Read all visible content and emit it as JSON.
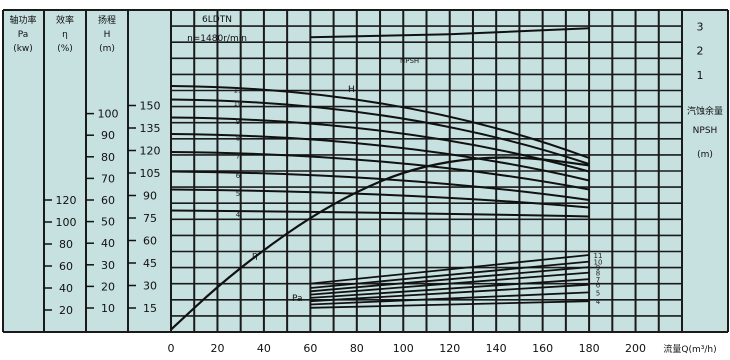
{
  "chart_data": {
    "type": "line",
    "title": "6LDTN",
    "subtitle": "n=1480r/min",
    "xlabel": "流量Q(m³/h)",
    "x_ticks": [
      "0",
      "20",
      "40",
      "60",
      "80",
      "100",
      "120",
      "140",
      "160",
      "180",
      "200"
    ],
    "xlim": [
      0,
      220
    ],
    "left_axes": [
      {
        "title": "轴功率",
        "symbol": "Pa",
        "unit": "(kw)",
        "ticks": [
          "20",
          "40",
          "60",
          "80",
          "100",
          "120"
        ]
      },
      {
        "title": "效率",
        "symbol": "η",
        "unit": "(%)",
        "ticks": [
          "10",
          "20",
          "30",
          "40",
          "50",
          "60",
          "70",
          "80",
          "90",
          "100"
        ]
      },
      {
        "title": "扬程",
        "symbol": "H",
        "unit": "(m)",
        "ticks": [
          "15",
          "30",
          "45",
          "60",
          "75",
          "90",
          "105",
          "120",
          "135",
          "150"
        ]
      }
    ],
    "right_axis": {
      "title": "汽蚀余量",
      "symbol": "NPSH",
      "unit": "(m)",
      "ticks": [
        "1",
        "2",
        "3"
      ]
    },
    "curve_labels": {
      "head": "H",
      "efficiency": "η",
      "power": "Pa",
      "npsh": "NPSH"
    },
    "stage_labels_head": [
      "11",
      "10",
      "9",
      "8",
      "7",
      "6",
      "5",
      "4"
    ],
    "stage_labels_power": [
      "11",
      "10",
      "9",
      "8",
      "7",
      "6",
      "5",
      "4"
    ],
    "series": [
      {
        "name": "H",
        "stage": "11",
        "x": [
          0,
          180
        ],
        "y": [
          163,
          115
        ]
      },
      {
        "name": "H",
        "stage": "10",
        "x": [
          0,
          180
        ],
        "y": [
          154,
          111
        ]
      },
      {
        "name": "H",
        "stage": "9",
        "x": [
          0,
          180
        ],
        "y": [
          142,
          106
        ]
      },
      {
        "name": "H",
        "stage": "8",
        "x": [
          0,
          180
        ],
        "y": [
          131,
          100
        ]
      },
      {
        "name": "H",
        "stage": "7",
        "x": [
          0,
          180
        ],
        "y": [
          119,
          94
        ]
      },
      {
        "name": "H",
        "stage": "6",
        "x": [
          0,
          180
        ],
        "y": [
          106,
          87
        ]
      },
      {
        "name": "H",
        "stage": "5",
        "x": [
          0,
          180
        ],
        "y": [
          94,
          82
        ]
      },
      {
        "name": "H",
        "stage": "4",
        "x": [
          0,
          180
        ],
        "y": [
          80,
          76
        ]
      },
      {
        "name": "η",
        "x": [
          0,
          20,
          40,
          60,
          80,
          100,
          120,
          140,
          160,
          180
        ],
        "y": [
          0,
          20,
          37,
          52,
          64,
          73,
          78,
          80,
          79,
          76
        ]
      },
      {
        "name": "NPSH",
        "x": [
          60,
          120,
          180
        ],
        "y": [
          2.55,
          2.68,
          2.92
        ]
      },
      {
        "name": "Pa",
        "stage": "11",
        "x": [
          60,
          180
        ],
        "y": [
          44,
          70
        ]
      },
      {
        "name": "Pa",
        "stage": "10",
        "x": [
          60,
          180
        ],
        "y": [
          40,
          64
        ]
      },
      {
        "name": "Pa",
        "stage": "9",
        "x": [
          60,
          180
        ],
        "y": [
          37,
          59
        ]
      },
      {
        "name": "Pa",
        "stage": "8",
        "x": [
          60,
          180
        ],
        "y": [
          34,
          54
        ]
      },
      {
        "name": "Pa",
        "stage": "7",
        "x": [
          60,
          180
        ],
        "y": [
          31,
          48
        ]
      },
      {
        "name": "Pa",
        "stage": "6",
        "x": [
          60,
          180
        ],
        "y": [
          28,
          43
        ]
      },
      {
        "name": "Pa",
        "stage": "5",
        "x": [
          60,
          180
        ],
        "y": [
          25,
          36
        ]
      },
      {
        "name": "Pa",
        "stage": "4",
        "x": [
          60,
          180
        ],
        "y": [
          22,
          28
        ]
      }
    ],
    "grid": true,
    "colors": {
      "background": "#ffffff",
      "panel": "#c7e1e0",
      "grid": "#1a1a1a",
      "curve": "#111111"
    }
  }
}
